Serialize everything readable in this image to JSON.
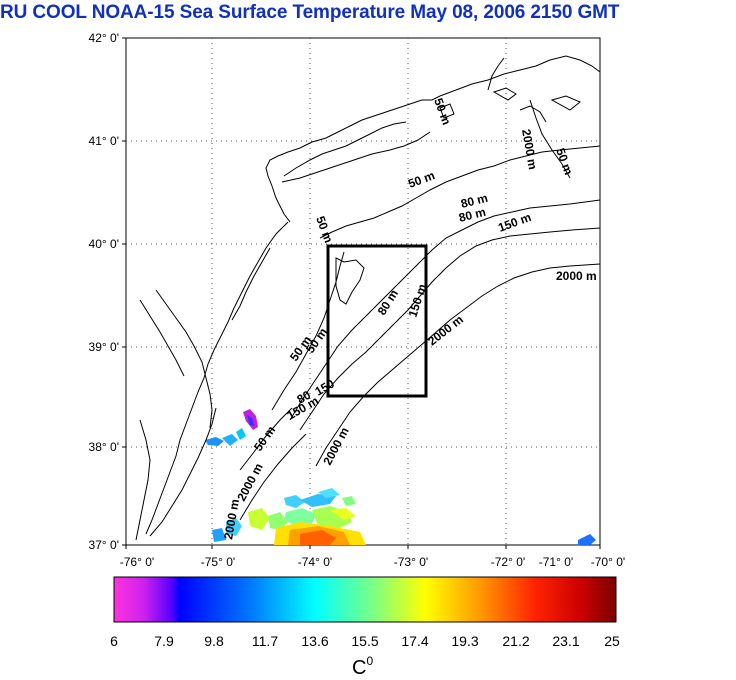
{
  "title": "RU COOL  NOAA-15 Sea Surface Temperature May 08, 2006 2150 GMT",
  "lat_ticks": [
    "42° 0'",
    "41° 0'",
    "40° 0'",
    "39° 0'",
    "38° 0'",
    "37° 0'"
  ],
  "lon_ticks": [
    "-76° 0'",
    "-75° 0'",
    "-74° 0'",
    "-73° 0'",
    "-72° 0'",
    "-71° 0'",
    "-70° 0'"
  ],
  "contours": {
    "c50a": "50 m",
    "c50b": "50 m",
    "c50c": "50 m",
    "c50d": "50 m",
    "c50e": "50 m",
    "c50f": "50 m",
    "c50g": "50 m",
    "c80a": "80 m",
    "c80b": "80 m",
    "c80c": "80 m",
    "c80d": "80",
    "c150a": "150 m",
    "c150b": "150 m",
    "c150c": "150 m",
    "c150d": "150",
    "c2000a": "2000 m",
    "c2000b": "2000 m",
    "c2000c": "2000 m",
    "c2000d": "2000 m",
    "c2000e": "2000 m",
    "c2000f": "2000 m"
  },
  "colorbar": {
    "ticks": [
      "6",
      "7.9",
      "9.8",
      "11.7",
      "13.6",
      "15.5",
      "17.4",
      "19.3",
      "21.2",
      "23.1",
      "25"
    ],
    "min": 6,
    "max": 25,
    "unit": "C",
    "unit_sup": "0"
  },
  "colors": {
    "title": "#1030c0",
    "box": "#000000"
  }
}
